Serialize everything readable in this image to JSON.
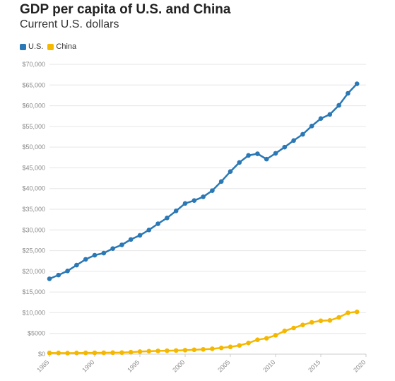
{
  "chart_data": {
    "type": "line",
    "title": "GDP per capita of U.S. and China",
    "subtitle": "Current U.S. dollars",
    "xlabel": "",
    "ylabel": "",
    "xlim": [
      1985,
      2020
    ],
    "ylim": [
      0,
      70000
    ],
    "x_ticks": [
      1985,
      1990,
      1995,
      2000,
      2005,
      2010,
      2015,
      2020
    ],
    "x_tick_labels": [
      "1985",
      "1990",
      "1995",
      "2000",
      "2005",
      "2010",
      "2015",
      "2020"
    ],
    "y_ticks": [
      0,
      5000,
      10000,
      15000,
      20000,
      25000,
      30000,
      35000,
      40000,
      45000,
      50000,
      55000,
      60000,
      65000,
      70000
    ],
    "y_tick_labels": [
      "$0",
      "$5000",
      "$10,000",
      "$15,000",
      "$20,000",
      "$25,000",
      "$30,000",
      "$35,000",
      "$40,000",
      "$45,000",
      "$50,000",
      "$55,000",
      "$60,000",
      "$65,000",
      "$70,000"
    ],
    "grid": "horizontal",
    "legend_position": "top-left",
    "x": [
      1985,
      1986,
      1987,
      1988,
      1989,
      1990,
      1991,
      1992,
      1993,
      1994,
      1995,
      1996,
      1997,
      1998,
      1999,
      2000,
      2001,
      2002,
      2003,
      2004,
      2005,
      2006,
      2007,
      2008,
      2009,
      2010,
      2011,
      2012,
      2013,
      2014,
      2015,
      2016,
      2017,
      2018,
      2019
    ],
    "series": [
      {
        "name": "U.S.",
        "color": "#2a78b5",
        "values": [
          18200,
          19100,
          20100,
          21500,
          22900,
          23900,
          24400,
          25500,
          26400,
          27700,
          28700,
          30000,
          31500,
          32900,
          34600,
          36400,
          37100,
          38000,
          39500,
          41700,
          44100,
          46300,
          48000,
          48400,
          47100,
          48500,
          50000,
          51600,
          53100,
          55100,
          56900,
          57900,
          60100,
          63000,
          65300
        ]
      },
      {
        "name": "China",
        "color": "#f5b800",
        "values": [
          294,
          282,
          251,
          283,
          310,
          317,
          333,
          366,
          377,
          473,
          610,
          709,
          782,
          829,
          873,
          959,
          1053,
          1149,
          1289,
          1509,
          1753,
          2099,
          2694,
          3468,
          3832,
          4550,
          5618,
          6317,
          7051,
          7679,
          8067,
          8148,
          8879,
          9977,
          10217
        ]
      }
    ]
  }
}
